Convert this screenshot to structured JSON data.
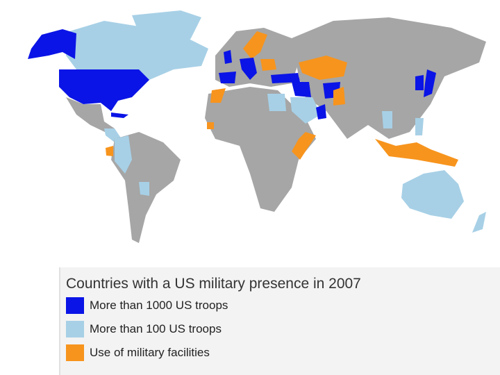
{
  "legend": {
    "title": "Countries with a US military presence in 2007",
    "items": [
      {
        "label": "More than 1000 US troops",
        "color": "#0a14e6"
      },
      {
        "label": "More than 100 US troops",
        "color": "#a7d0e6"
      },
      {
        "label": "Use of military facilities",
        "color": "#f7941d"
      }
    ]
  }
}
